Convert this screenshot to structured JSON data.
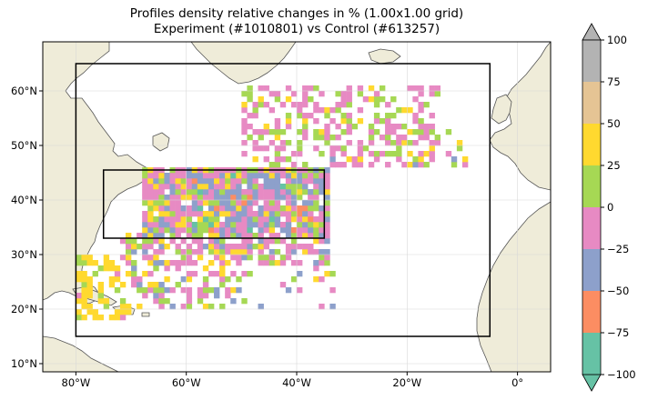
{
  "title_line1": "Profiles density relative changes in % (1.00x1.00 grid)",
  "title_line2": "Experiment (#1010801) vs Control (#613257)",
  "map": {
    "projection": "PlateCarree",
    "lon_range": [
      -86,
      6
    ],
    "lat_range": [
      8.5,
      69
    ],
    "land_color": "#efecd9",
    "ocean_color": "#ffffff",
    "coastline_color": "#555555",
    "gridlines": true,
    "lon_ticks": [
      {
        "value": -80,
        "label": "80°W"
      },
      {
        "value": -60,
        "label": "60°W"
      },
      {
        "value": -40,
        "label": "40°W"
      },
      {
        "value": -20,
        "label": "20°W"
      },
      {
        "value": 0,
        "label": "0°"
      }
    ],
    "lat_ticks": [
      {
        "value": 10,
        "label": "10°N"
      },
      {
        "value": 20,
        "label": "20°N"
      },
      {
        "value": 30,
        "label": "30°N"
      },
      {
        "value": 40,
        "label": "40°N"
      },
      {
        "value": 50,
        "label": "50°N"
      },
      {
        "value": 60,
        "label": "60°N"
      }
    ],
    "outer_box": {
      "lon": [
        -80,
        -5
      ],
      "lat": [
        15,
        65
      ]
    },
    "inner_box": {
      "lon": [
        -75,
        -35
      ],
      "lat": [
        33,
        45.5
      ]
    }
  },
  "colorbar": {
    "levels": [
      -100,
      -75,
      -50,
      -25,
      0,
      25,
      50,
      75,
      100
    ],
    "labels": [
      "−100",
      "−75",
      "−50",
      "−25",
      "0",
      "25",
      "50",
      "75",
      "100"
    ],
    "colors": [
      "#66c2a5",
      "#fc8d62",
      "#8da0cb",
      "#e78ac3",
      "#a6d854",
      "#ffd92f",
      "#e5c494",
      "#b3b3b3"
    ],
    "extend": "both"
  }
}
